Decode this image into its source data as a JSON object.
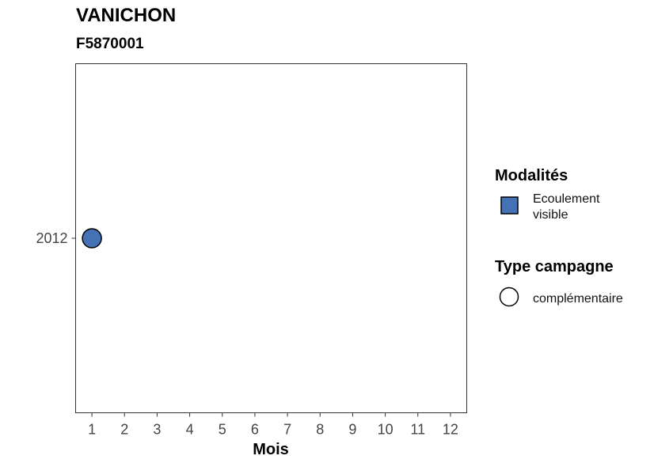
{
  "chart_data": {
    "type": "scatter",
    "title": "VANICHON",
    "subtitle": "F5870001",
    "xlabel": "Mois",
    "ylabel": "",
    "x_ticks": [
      "1",
      "2",
      "3",
      "4",
      "5",
      "6",
      "7",
      "8",
      "9",
      "10",
      "11",
      "12"
    ],
    "xlim": [
      0.5,
      12.5
    ],
    "y_categories": [
      "2012"
    ],
    "points": [
      {
        "x": 1,
        "y": "2012",
        "modalite": "Ecoulement visible",
        "type_campagne": "complémentaire",
        "color": "#4472B4"
      }
    ],
    "grid": false,
    "legend_position": "right",
    "legends": [
      {
        "title": "Modalités",
        "shape": "square",
        "entries": [
          {
            "label_lines": [
              "Ecoulement",
              "visible"
            ],
            "color": "#4472B4"
          }
        ]
      },
      {
        "title": "Type campagne",
        "shape": "circle",
        "entries": [
          {
            "label_lines": [
              "complémentaire"
            ],
            "color": "#ffffff"
          }
        ]
      }
    ]
  }
}
